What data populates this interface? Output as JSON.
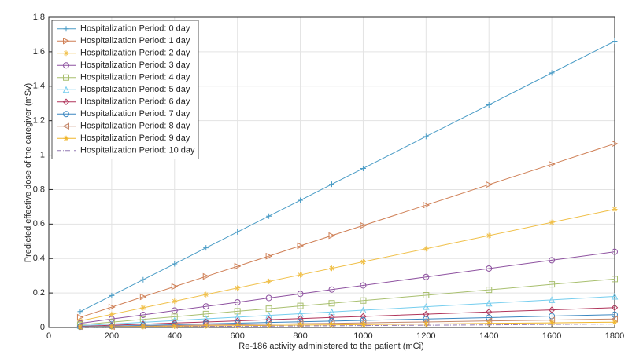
{
  "chart_data": {
    "type": "line",
    "x_label": "Re-186 activity administered to the patient (mCi)",
    "y_label": "Predicted effective dose of the caregiver (mSv)",
    "x": [
      100,
      200,
      300,
      400,
      500,
      600,
      700,
      800,
      900,
      1000,
      1200,
      1400,
      1600,
      1800
    ],
    "xlim": [
      0,
      1800
    ],
    "xticks": [
      0,
      200,
      400,
      600,
      800,
      1000,
      1200,
      1400,
      1600,
      1800
    ],
    "ylim": [
      0,
      1.8
    ],
    "yticks": [
      0,
      0.2,
      0.4,
      0.6,
      0.8,
      1,
      1.2,
      1.4,
      1.6,
      1.8
    ],
    "grid": true,
    "legend": "upper-left",
    "series": [
      {
        "name": "Hospitalization Period: 0 day",
        "color": "#4a9cc6",
        "marker": "plus",
        "values": [
          0.092,
          0.185,
          0.277,
          0.369,
          0.462,
          0.554,
          0.646,
          0.738,
          0.831,
          0.923,
          1.108,
          1.292,
          1.477,
          1.661
        ]
      },
      {
        "name": "Hospitalization Period: 1 day",
        "color": "#cf7f55",
        "marker": "right",
        "values": [
          0.059,
          0.118,
          0.178,
          0.237,
          0.296,
          0.355,
          0.414,
          0.474,
          0.533,
          0.592,
          0.71,
          0.829,
          0.947,
          1.066
        ]
      },
      {
        "name": "Hospitalization Period: 2 day",
        "color": "#f0c04a",
        "marker": "star",
        "values": [
          0.038,
          0.076,
          0.114,
          0.152,
          0.191,
          0.229,
          0.267,
          0.305,
          0.343,
          0.381,
          0.457,
          0.533,
          0.61,
          0.686
        ]
      },
      {
        "name": "Hospitalization Period: 3 day",
        "color": "#8e52a0",
        "marker": "circle",
        "values": [
          0.024,
          0.049,
          0.073,
          0.098,
          0.122,
          0.146,
          0.171,
          0.195,
          0.22,
          0.244,
          0.293,
          0.342,
          0.39,
          0.439
        ]
      },
      {
        "name": "Hospitalization Period: 4 day",
        "color": "#a8bf6e",
        "marker": "square",
        "values": [
          0.016,
          0.031,
          0.047,
          0.062,
          0.078,
          0.094,
          0.109,
          0.125,
          0.14,
          0.156,
          0.187,
          0.218,
          0.25,
          0.281
        ]
      },
      {
        "name": "Hospitalization Period: 5 day",
        "color": "#74cdee",
        "marker": "up",
        "values": [
          0.01,
          0.02,
          0.03,
          0.04,
          0.05,
          0.06,
          0.07,
          0.08,
          0.09,
          0.1,
          0.12,
          0.14,
          0.16,
          0.18
        ]
      },
      {
        "name": "Hospitalization Period: 6 day",
        "color": "#b0345a",
        "marker": "diamond",
        "values": [
          0.006,
          0.013,
          0.019,
          0.026,
          0.032,
          0.038,
          0.045,
          0.051,
          0.058,
          0.064,
          0.077,
          0.09,
          0.102,
          0.115
        ]
      },
      {
        "name": "Hospitalization Period: 7 day",
        "color": "#3a86c0",
        "marker": "circle",
        "values": [
          0.004,
          0.008,
          0.012,
          0.016,
          0.021,
          0.025,
          0.029,
          0.033,
          0.037,
          0.041,
          0.049,
          0.057,
          0.066,
          0.074
        ]
      },
      {
        "name": "Hospitalization Period: 8 day",
        "color": "#c4876a",
        "marker": "left",
        "values": [
          0.003,
          0.005,
          0.008,
          0.011,
          0.014,
          0.016,
          0.019,
          0.022,
          0.024,
          0.027,
          0.032,
          0.038,
          0.043,
          0.049
        ]
      },
      {
        "name": "Hospitalization Period: 9 day",
        "color": "#f0b52a",
        "marker": "star",
        "values": [
          0.002,
          0.003,
          0.005,
          0.007,
          0.009,
          0.01,
          0.012,
          0.014,
          0.015,
          0.017,
          0.02,
          0.024,
          0.027,
          0.031
        ]
      },
      {
        "name": "Hospitalization Period: 10 day",
        "color": "#9278b4",
        "marker": "none",
        "values": [
          0.001,
          0.002,
          0.003,
          0.004,
          0.006,
          0.007,
          0.008,
          0.009,
          0.01,
          0.011,
          0.013,
          0.015,
          0.018,
          0.02
        ]
      }
    ]
  }
}
